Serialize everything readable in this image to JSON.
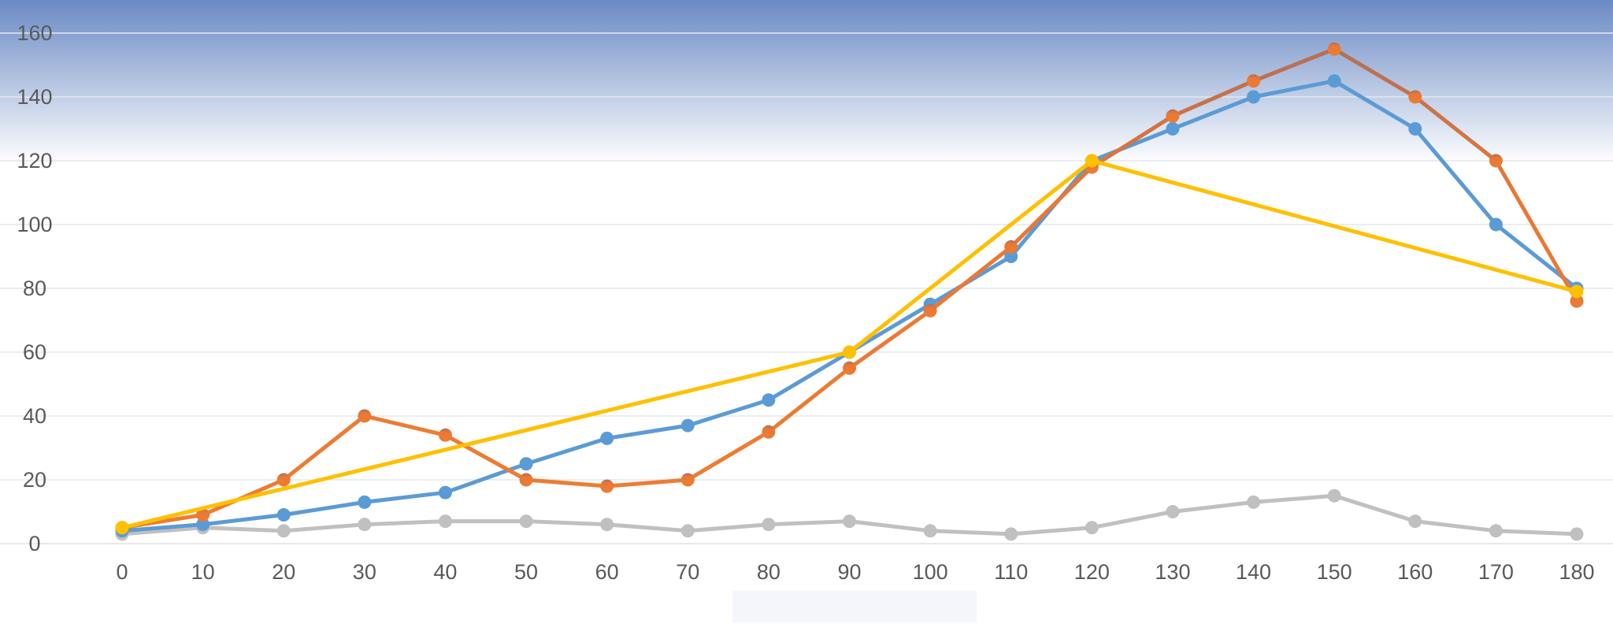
{
  "chart_data": {
    "type": "line",
    "title": "",
    "xlabel": "",
    "ylabel": "",
    "x": [
      0,
      10,
      20,
      30,
      40,
      50,
      60,
      70,
      80,
      90,
      100,
      110,
      120,
      130,
      140,
      150,
      160,
      170,
      180
    ],
    "xticks": [
      "0",
      "10",
      "20",
      "30",
      "40",
      "50",
      "60",
      "70",
      "80",
      "90",
      "100",
      "110",
      "120",
      "130",
      "140",
      "150",
      "160",
      "170",
      "180"
    ],
    "ylim": [
      0,
      160
    ],
    "yticks": [
      "0",
      "20",
      "40",
      "60",
      "80",
      "100",
      "120",
      "140",
      "160"
    ],
    "grid": true,
    "legend": "none",
    "background_gradient": [
      "#6a8ac4",
      "#ffffff"
    ],
    "series": [
      {
        "color": "#c0c0c0",
        "x": [
          0,
          10,
          20,
          30,
          40,
          50,
          60,
          70,
          80,
          90,
          100,
          110,
          120,
          130,
          140,
          150,
          160,
          170,
          180
        ],
        "values": [
          3,
          5,
          4,
          6,
          7,
          7,
          6,
          4,
          6,
          7,
          4,
          3,
          5,
          10,
          13,
          15,
          7,
          4,
          3
        ]
      },
      {
        "color": "#5b9bd5",
        "x": [
          0,
          10,
          20,
          30,
          40,
          50,
          60,
          70,
          80,
          90,
          100,
          110,
          120,
          130,
          140,
          150,
          160,
          170,
          180
        ],
        "values": [
          4,
          6,
          9,
          13,
          16,
          25,
          33,
          37,
          45,
          60,
          75,
          90,
          120,
          130,
          140,
          145,
          130,
          100,
          80
        ]
      },
      {
        "color": "#c0714a",
        "x": [
          0,
          10,
          20,
          30,
          40,
          50,
          60,
          70,
          80,
          90,
          100,
          110,
          120,
          130,
          140,
          150,
          160,
          170,
          180
        ],
        "values": [
          5,
          9,
          20,
          40,
          34,
          20,
          18,
          20,
          35,
          55,
          73,
          93,
          118,
          134,
          145,
          155,
          140,
          120,
          76
        ]
      },
      {
        "color": "#ffc000",
        "x": [
          0,
          90,
          120,
          180
        ],
        "values": [
          5,
          60,
          120,
          79
        ]
      }
    ]
  }
}
